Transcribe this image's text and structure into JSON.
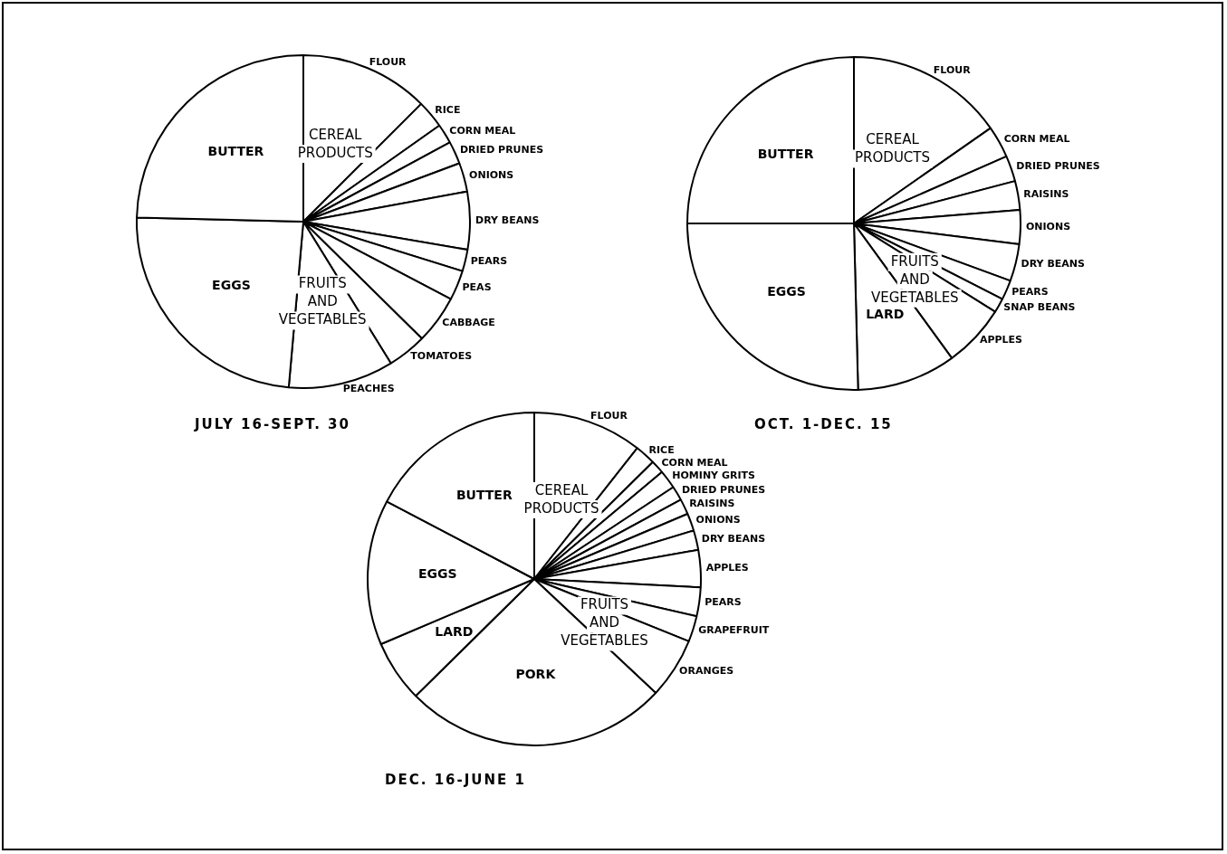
{
  "chart_data": [
    {
      "type": "pie",
      "title": "JULY 16-SEPT. 30",
      "categories": [
        "FLOUR",
        "RICE",
        "CORN MEAL",
        "DRIED PRUNES",
        "ONIONS",
        "DRY BEANS",
        "PEARS",
        "PEAS",
        "CABBAGE",
        "TOMATOES",
        "PEACHES",
        "EGGS",
        "BUTTER"
      ],
      "values": [
        12.5,
        2.7,
        1.9,
        2.2,
        2.8,
        5.6,
        2.1,
        2.9,
        4.7,
        3.8,
        10.2,
        24.0,
        24.6
      ],
      "colors": [
        "#ffffff",
        "#ffffff",
        "#ffffff",
        "#ffffff",
        "#ffffff",
        "#ffffff",
        "#ffffff",
        "#ffffff",
        "#ffffff",
        "#ffffff",
        "#ffffff",
        "#ffffff",
        "#ffffff"
      ],
      "annotations": [
        {
          "text": "CEREAL PRODUCTS",
          "x": "FLOUR"
        },
        {
          "text": "FRUITS AND VEGETABLES",
          "x": "PEACHES"
        }
      ]
    },
    {
      "type": "pie",
      "title": "OCT. 1-DEC. 15",
      "categories": [
        "FLOUR",
        "CORN MEAL",
        "DRIED PRUNES",
        "RAISINS",
        "ONIONS",
        "DRY BEANS",
        "PEARS",
        "SNAP BEANS",
        "APPLES",
        "LARD",
        "EGGS",
        "BUTTER"
      ],
      "values": [
        15.3,
        3.1,
        2.5,
        2.8,
        3.3,
        3.6,
        1.9,
        1.4,
        6.1,
        9.6,
        25.4,
        25.0
      ],
      "colors": [
        "#ffffff",
        "#ffffff",
        "#ffffff",
        "#ffffff",
        "#ffffff",
        "#ffffff",
        "#ffffff",
        "#ffffff",
        "#ffffff",
        "#ffffff",
        "#ffffff",
        "#ffffff"
      ],
      "annotations": [
        {
          "text": "CEREAL PRODUCTS",
          "x": "FLOUR"
        },
        {
          "text": "FRUITS AND VEGETABLES",
          "x": "APPLES"
        }
      ]
    },
    {
      "type": "pie",
      "title": "DEC. 16-JUNE 1",
      "categories": [
        "FLOUR",
        "RICE",
        "CORN MEAL",
        "HOMINY GRITS",
        "DRIED PRUNES",
        "RAISINS",
        "ONIONS",
        "DRY BEANS",
        "APPLES",
        "PEARS",
        "GRAPEFRUIT",
        "ORANGES",
        "PORK",
        "LARD",
        "EGGS",
        "BUTTER"
      ],
      "values": [
        10.6,
        2.0,
        1.3,
        1.8,
        1.4,
        1.5,
        1.7,
        1.9,
        3.6,
        2.8,
        2.5,
        5.9,
        25.6,
        6.0,
        14.1,
        17.3
      ],
      "colors": [
        "#ffffff",
        "#ffffff",
        "#ffffff",
        "#ffffff",
        "#ffffff",
        "#ffffff",
        "#ffffff",
        "#ffffff",
        "#ffffff",
        "#ffffff",
        "#ffffff",
        "#ffffff",
        "#ffffff",
        "#ffffff",
        "#ffffff",
        "#ffffff"
      ],
      "annotations": [
        {
          "text": "CEREAL PRODUCTS",
          "x": "FLOUR"
        },
        {
          "text": "FRUITS AND VEGETABLES",
          "x": "ORANGES"
        }
      ]
    }
  ]
}
